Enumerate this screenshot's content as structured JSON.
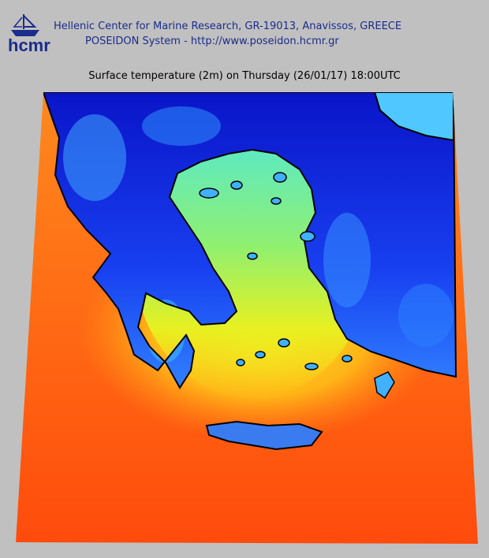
{
  "header": {
    "logo": "hcmr",
    "institution": "Hellenic Center for Marine Research, GR-19013, Anavissos, GREECE",
    "system": "POSEIDON System - http://www.poseidon.hcmr.gr"
  },
  "map": {
    "title": "Surface temperature (2m) on Thursday (26/01/17) 18:00UTC"
  }
}
